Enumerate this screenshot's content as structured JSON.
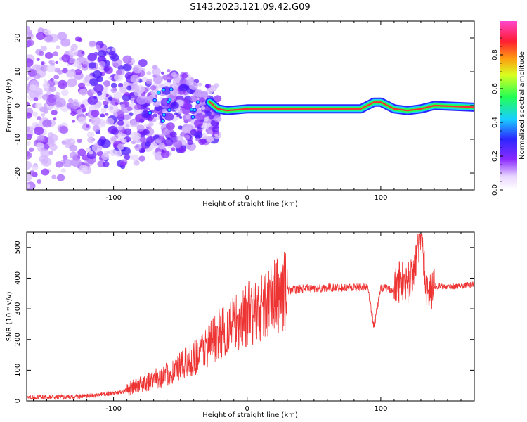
{
  "title": "S143.2023.121.09.42.G09",
  "chart_data": [
    {
      "type": "heatmap",
      "xlabel": "Height of straight line (km)",
      "ylabel": "Frequency (Hz)",
      "xlim": [
        -165,
        170
      ],
      "ylim": [
        -25,
        25
      ],
      "x_ticks": [
        -100,
        0,
        100
      ],
      "y_ticks": [
        -20,
        -10,
        0,
        10,
        20
      ],
      "grid": false,
      "colorbar": {
        "label": "Normalized spectral amplitude",
        "range": [
          0,
          1
        ],
        "ticks": [
          0.0,
          0.2,
          0.4,
          0.6,
          0.8
        ],
        "colormap": "rainbow (white-violet-blue-cyan-green-yellow-orange-red-magenta)"
      },
      "ridge": {
        "description": "strong line near 0 Hz from about -25 km to 170 km",
        "x": [
          -28,
          -22,
          -15,
          0,
          50,
          85,
          90,
          95,
          100,
          110,
          120,
          130,
          140,
          170
        ],
        "y": [
          1,
          -1,
          -1.5,
          -1,
          -1,
          -1,
          0,
          1,
          1,
          -1,
          -1.5,
          -1,
          0,
          -0.5
        ]
      },
      "noise_region": {
        "x_range": [
          -165,
          -28
        ],
        "y_range": [
          -25,
          25
        ]
      }
    },
    {
      "type": "line",
      "xlabel": "Height of straight line (km)",
      "ylabel": "SNR (10 * v/v)",
      "xlim": [
        -165,
        170
      ],
      "ylim": [
        0,
        550
      ],
      "x_ticks": [
        -100,
        0,
        100
      ],
      "y_ticks": [
        0,
        100,
        200,
        300,
        400,
        500
      ],
      "grid": false,
      "color": "#ee3333",
      "series": [
        {
          "name": "",
          "x": [
            -165,
            -140,
            -120,
            -100,
            -90,
            -80,
            -70,
            -60,
            -50,
            -40,
            -30,
            -20,
            -10,
            0,
            10,
            20,
            30,
            40,
            60,
            80,
            90,
            95,
            100,
            110,
            115,
            120,
            125,
            130,
            135,
            140,
            150,
            160,
            170
          ],
          "y": [
            12,
            12,
            15,
            25,
            35,
            55,
            70,
            85,
            110,
            140,
            180,
            220,
            250,
            280,
            300,
            340,
            360,
            365,
            368,
            370,
            372,
            240,
            370,
            360,
            400,
            380,
            430,
            540,
            350,
            375,
            372,
            375,
            380
          ]
        }
      ]
    }
  ]
}
